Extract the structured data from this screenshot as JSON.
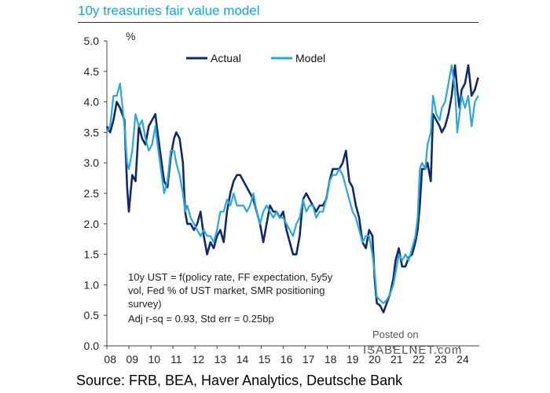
{
  "chart_data": {
    "type": "line",
    "title": "10y treasuries fair value model",
    "ylabel": "%",
    "xlabel": "",
    "ylim": [
      0,
      5
    ],
    "xlim": [
      2008.0,
      2024.9
    ],
    "y_ticks": [
      "0.0",
      "0.5",
      "1.0",
      "1.5",
      "2.0",
      "2.5",
      "3.0",
      "3.5",
      "4.0",
      "4.5",
      "5.0"
    ],
    "x_ticks": [
      "08",
      "09",
      "10",
      "11",
      "12",
      "13",
      "14",
      "15",
      "16",
      "17",
      "18",
      "19",
      "20",
      "21",
      "22",
      "23",
      "24"
    ],
    "legend": "top",
    "annotation_lines": [
      "10y UST = f(policy rate, FF expectation, 5y5y",
      "vol, Fed % of UST market, SMR positioning",
      "survey)",
      "Adj r-sq = 0.93, Std err = 0.25bp"
    ],
    "series": [
      {
        "name": "Actual",
        "color": "#0f2b6b",
        "x": [
          2008.0,
          2008.15,
          2008.3,
          2008.45,
          2008.6,
          2008.8,
          2008.92,
          2009.0,
          2009.15,
          2009.3,
          2009.45,
          2009.6,
          2009.75,
          2009.9,
          2010.05,
          2010.2,
          2010.3,
          2010.45,
          2010.6,
          2010.75,
          2010.9,
          2011.05,
          2011.15,
          2011.3,
          2011.45,
          2011.55,
          2011.65,
          2011.8,
          2011.95,
          2012.1,
          2012.25,
          2012.4,
          2012.55,
          2012.7,
          2012.85,
          2013.0,
          2013.15,
          2013.3,
          2013.45,
          2013.6,
          2013.75,
          2013.9,
          2014.05,
          2014.2,
          2014.35,
          2014.5,
          2014.65,
          2014.8,
          2014.95,
          2015.1,
          2015.25,
          2015.4,
          2015.55,
          2015.7,
          2015.85,
          2016.0,
          2016.15,
          2016.3,
          2016.45,
          2016.6,
          2016.75,
          2016.9,
          2017.05,
          2017.2,
          2017.35,
          2017.5,
          2017.65,
          2017.8,
          2017.95,
          2018.1,
          2018.25,
          2018.4,
          2018.55,
          2018.7,
          2018.85,
          2019.0,
          2019.15,
          2019.3,
          2019.45,
          2019.6,
          2019.75,
          2019.9,
          2020.05,
          2020.15,
          2020.25,
          2020.4,
          2020.55,
          2020.7,
          2020.85,
          2021.0,
          2021.1,
          2021.25,
          2021.4,
          2021.55,
          2021.7,
          2021.85,
          2022.0,
          2022.1,
          2022.2,
          2022.3,
          2022.45,
          2022.55,
          2022.7,
          2022.8,
          2022.95,
          2023.1,
          2023.2,
          2023.35,
          2023.5,
          2023.65,
          2023.8,
          2023.9,
          2024.0,
          2024.1,
          2024.25,
          2024.4,
          2024.55,
          2024.7,
          2024.85
        ],
        "values": [
          3.6,
          3.5,
          3.7,
          4.0,
          3.9,
          3.7,
          2.6,
          2.2,
          2.8,
          2.7,
          3.6,
          3.4,
          3.3,
          3.6,
          3.7,
          3.8,
          3.5,
          3.1,
          2.7,
          2.6,
          3.1,
          3.4,
          3.5,
          3.4,
          3.0,
          2.2,
          2.0,
          2.0,
          1.9,
          2.0,
          2.2,
          1.8,
          1.5,
          1.7,
          1.6,
          1.8,
          1.9,
          1.7,
          2.2,
          2.5,
          2.7,
          2.8,
          2.8,
          2.7,
          2.6,
          2.5,
          2.4,
          2.2,
          2.0,
          1.7,
          2.0,
          2.3,
          2.2,
          2.2,
          2.1,
          2.2,
          1.9,
          1.7,
          1.5,
          1.5,
          1.8,
          2.4,
          2.5,
          2.4,
          2.3,
          2.2,
          2.3,
          2.3,
          2.4,
          2.7,
          2.9,
          2.9,
          2.9,
          3.0,
          3.2,
          2.7,
          2.6,
          2.3,
          2.1,
          1.7,
          1.6,
          1.9,
          1.8,
          1.1,
          0.7,
          0.66,
          0.55,
          0.7,
          0.85,
          1.1,
          1.4,
          1.6,
          1.3,
          1.3,
          1.45,
          1.5,
          1.7,
          1.9,
          2.3,
          2.9,
          2.9,
          3.0,
          2.7,
          3.8,
          3.7,
          3.6,
          3.5,
          3.6,
          3.8,
          4.1,
          4.6,
          4.2,
          3.9,
          4.2,
          4.3,
          4.6,
          4.1,
          4.2,
          4.4
        ]
      },
      {
        "name": "Model",
        "color": "#2aa7dc",
        "x": [
          2008.0,
          2008.15,
          2008.3,
          2008.45,
          2008.6,
          2008.8,
          2008.92,
          2009.0,
          2009.15,
          2009.3,
          2009.45,
          2009.6,
          2009.75,
          2009.9,
          2010.05,
          2010.2,
          2010.3,
          2010.45,
          2010.6,
          2010.75,
          2010.9,
          2011.05,
          2011.15,
          2011.3,
          2011.45,
          2011.55,
          2011.65,
          2011.8,
          2011.95,
          2012.1,
          2012.25,
          2012.4,
          2012.55,
          2012.7,
          2012.85,
          2013.0,
          2013.15,
          2013.3,
          2013.45,
          2013.6,
          2013.75,
          2013.9,
          2014.05,
          2014.2,
          2014.35,
          2014.5,
          2014.65,
          2014.8,
          2014.95,
          2015.1,
          2015.25,
          2015.4,
          2015.55,
          2015.7,
          2015.85,
          2016.0,
          2016.15,
          2016.3,
          2016.45,
          2016.6,
          2016.75,
          2016.9,
          2017.05,
          2017.2,
          2017.35,
          2017.5,
          2017.65,
          2017.8,
          2017.95,
          2018.1,
          2018.25,
          2018.4,
          2018.55,
          2018.7,
          2018.85,
          2019.0,
          2019.15,
          2019.3,
          2019.45,
          2019.6,
          2019.75,
          2019.9,
          2020.05,
          2020.15,
          2020.25,
          2020.4,
          2020.55,
          2020.7,
          2020.85,
          2021.0,
          2021.1,
          2021.25,
          2021.4,
          2021.55,
          2021.7,
          2021.85,
          2022.0,
          2022.1,
          2022.2,
          2022.3,
          2022.45,
          2022.55,
          2022.7,
          2022.8,
          2022.95,
          2023.1,
          2023.2,
          2023.35,
          2023.5,
          2023.65,
          2023.8,
          2023.9,
          2024.0,
          2024.1,
          2024.25,
          2024.4,
          2024.55,
          2024.7,
          2024.85
        ],
        "values": [
          3.5,
          3.6,
          4.1,
          4.1,
          4.3,
          3.6,
          3.0,
          2.9,
          3.2,
          3.8,
          3.6,
          3.7,
          3.4,
          3.2,
          3.3,
          3.6,
          3.3,
          2.9,
          2.5,
          2.7,
          3.2,
          3.2,
          3.0,
          2.8,
          2.5,
          2.2,
          2.3,
          2.1,
          2.0,
          1.9,
          1.8,
          1.9,
          1.8,
          1.8,
          1.7,
          1.9,
          2.2,
          2.2,
          2.4,
          2.3,
          2.5,
          2.3,
          2.3,
          2.3,
          2.2,
          2.3,
          2.5,
          2.2,
          2.0,
          2.2,
          2.3,
          2.2,
          2.1,
          2.2,
          2.1,
          2.1,
          2.0,
          1.9,
          1.8,
          2.0,
          2.1,
          2.4,
          2.2,
          2.3,
          2.3,
          2.1,
          2.2,
          2.2,
          2.4,
          2.7,
          2.8,
          2.8,
          2.9,
          2.8,
          2.6,
          2.4,
          2.2,
          2.1,
          1.9,
          1.7,
          1.8,
          1.8,
          1.5,
          1.2,
          0.8,
          0.75,
          0.7,
          0.75,
          0.85,
          1.0,
          1.2,
          1.5,
          1.4,
          1.5,
          1.4,
          1.6,
          1.8,
          2.1,
          2.9,
          3.0,
          2.9,
          3.3,
          3.5,
          4.1,
          3.8,
          3.7,
          3.9,
          4.0,
          4.3,
          4.6,
          4.2,
          3.5,
          3.8,
          4.1,
          3.9,
          4.1,
          3.6,
          4.0,
          4.1
        ]
      }
    ]
  },
  "watermark": {
    "line1": "Posted on",
    "line2": "ISABELNET.com"
  },
  "source": "Source: FRB,  BEA, Haver Analytics, Deutsche Bank"
}
